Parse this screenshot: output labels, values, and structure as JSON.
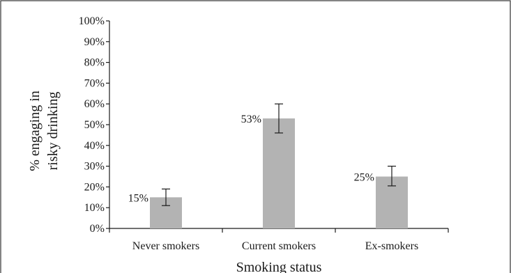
{
  "chart_data": {
    "type": "bar",
    "title": "",
    "xlabel": "Smoking status",
    "ylabel_lines": [
      "% engaging in",
      "risky drinking"
    ],
    "categories": [
      "Never smokers",
      "Current smokers",
      "Ex-smokers"
    ],
    "values": [
      15,
      53,
      25
    ],
    "data_labels": [
      "15%",
      "53%",
      "25%"
    ],
    "error_bars": [
      {
        "low": 11,
        "high": 19
      },
      {
        "low": 46,
        "high": 60
      },
      {
        "low": 20.5,
        "high": 30
      }
    ],
    "ylim": [
      0,
      100
    ],
    "y_ticks": [
      0,
      10,
      20,
      30,
      40,
      50,
      60,
      70,
      80,
      90,
      100
    ],
    "y_tick_labels": [
      "0%",
      "10%",
      "20%",
      "30%",
      "40%",
      "50%",
      "60%",
      "70%",
      "80%",
      "90%",
      "100%"
    ],
    "grid": false,
    "legend": "none",
    "bar_color": "#b3b3b3",
    "error_bar_color": "#1a1a1a",
    "axis_color": "#1a1a1a",
    "frame_color": "#333333"
  }
}
